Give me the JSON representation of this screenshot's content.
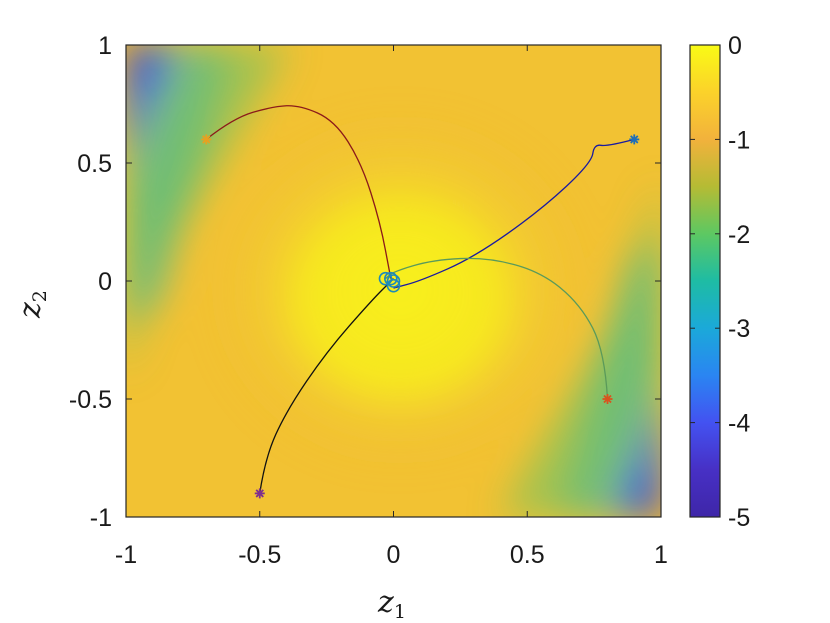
{
  "chart_data": {
    "type": "contour-trajectory",
    "xlabel": "z",
    "xlabel_sub": "1",
    "ylabel": "z",
    "ylabel_sub": "2",
    "xlim": [
      -1,
      1
    ],
    "ylim": [
      -1,
      1
    ],
    "xticks": [
      -1,
      -0.5,
      0,
      0.5,
      1
    ],
    "yticks": [
      -1,
      -0.5,
      0,
      0.5,
      1
    ],
    "xtick_labels": [
      "-1",
      "-0.5",
      "0",
      "0.5",
      "1"
    ],
    "ytick_labels": [
      "-1",
      "-0.5",
      "0",
      "0.5",
      "1"
    ],
    "colorbar": {
      "range": [
        -5,
        0
      ],
      "ticks": [
        0,
        -1,
        -2,
        -3,
        -4,
        -5
      ],
      "tick_labels": [
        "0",
        "-1",
        "-2",
        "-3",
        "-4",
        "-5"
      ],
      "colormap": [
        "#3e26a8",
        "#4352f1",
        "#2a85f2",
        "#1ba9d9",
        "#1ebca4",
        "#5dc862",
        "#b5bb34",
        "#f2b23c",
        "#fbd22a",
        "#f9fb15"
      ]
    },
    "background_colors": {
      "yellow": "#f5ea1c",
      "orange": "#f5b23a",
      "green": "#52c47a",
      "cyan": "#21b1c6",
      "blue": "#3c63e6",
      "indigo": "#3f2eb0"
    },
    "series": [
      {
        "color": "#8b1a1a",
        "start": [
          -0.7,
          0.6
        ],
        "end": [
          -0.01,
          0.01
        ],
        "points": [
          [
            -0.7,
            0.6
          ],
          [
            -0.6,
            0.69
          ],
          [
            -0.45,
            0.74
          ],
          [
            -0.35,
            0.745
          ],
          [
            -0.22,
            0.68
          ],
          [
            -0.12,
            0.5
          ],
          [
            -0.05,
            0.25
          ],
          [
            -0.01,
            0.01
          ]
        ]
      },
      {
        "color": "#1a1aa0",
        "start": [
          0.9,
          0.6
        ],
        "end": [
          0.0,
          -0.03
        ],
        "points": [
          [
            0.9,
            0.6
          ],
          [
            0.8,
            0.57
          ],
          [
            0.75,
            0.58
          ],
          [
            0.74,
            0.5
          ],
          [
            0.55,
            0.3
          ],
          [
            0.3,
            0.1
          ],
          [
            0.1,
            0.0
          ],
          [
            0.0,
            -0.03
          ]
        ]
      },
      {
        "color": "#5a9a5a",
        "start": [
          0.8,
          -0.5
        ],
        "end": [
          -0.03,
          0.01
        ],
        "points": [
          [
            0.8,
            -0.5
          ],
          [
            0.79,
            -0.3
          ],
          [
            0.7,
            -0.1
          ],
          [
            0.55,
            0.04
          ],
          [
            0.35,
            0.1
          ],
          [
            0.15,
            0.09
          ],
          [
            0.0,
            0.04
          ],
          [
            -0.03,
            0.01
          ]
        ]
      },
      {
        "color": "#111111",
        "start": [
          -0.5,
          -0.9
        ],
        "end": [
          0.0,
          0.01
        ],
        "points": [
          [
            -0.5,
            -0.9
          ],
          [
            -0.48,
            -0.75
          ],
          [
            -0.4,
            -0.55
          ],
          [
            -0.25,
            -0.3
          ],
          [
            -0.08,
            -0.08
          ],
          [
            0.0,
            0.01
          ]
        ]
      }
    ],
    "start_markers": [
      {
        "x": -0.7,
        "y": 0.6,
        "color": "#e8a020",
        "symbol": "asterisk"
      },
      {
        "x": 0.9,
        "y": 0.6,
        "color": "#1e6fb8",
        "symbol": "asterisk"
      },
      {
        "x": 0.8,
        "y": -0.5,
        "color": "#d9531e",
        "symbol": "asterisk"
      },
      {
        "x": -0.5,
        "y": -0.9,
        "color": "#7e2f8e",
        "symbol": "asterisk"
      }
    ],
    "end_markers": [
      {
        "x": -0.03,
        "y": 0.01,
        "color": "#1e8ab8",
        "symbol": "circle"
      },
      {
        "x": 0.0,
        "y": 0.0,
        "color": "#1e8ab8",
        "symbol": "circle"
      },
      {
        "x": 0.0,
        "y": -0.02,
        "color": "#1e8ab8",
        "symbol": "circle"
      },
      {
        "x": -0.01,
        "y": 0.01,
        "color": "#1e8ab8",
        "symbol": "circle"
      }
    ]
  }
}
